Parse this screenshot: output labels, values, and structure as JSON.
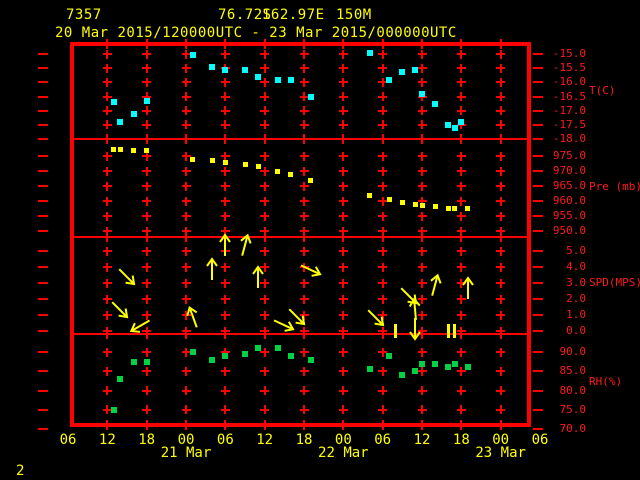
{
  "header": {
    "station_id": "7357",
    "latitude": "76.72S",
    "longitude": "162.97E",
    "elevation": "150M",
    "time_range": "20 Mar 2015/120000UTC - 23 Mar 2015/000000UTC"
  },
  "page_number": "2",
  "colors": {
    "background": "#000000",
    "axis_red": "#ff0000",
    "label_yellow": "#ffff00",
    "temperature_marker": "#00ffff",
    "pressure_marker": "#ffff00",
    "wind_arrow": "#ffff00",
    "humidity_marker": "#00d244"
  },
  "x_axis": {
    "time_base": "hours after 20 Mar 2015 0600UTC",
    "hour_labels": [
      "06",
      "12",
      "18",
      "00",
      "06",
      "12",
      "18",
      "00",
      "06",
      "12",
      "18",
      "00",
      "06"
    ],
    "date_labels": [
      {
        "label": "21 Mar",
        "t": 18
      },
      {
        "label": "22 Mar",
        "t": 42
      },
      {
        "label": "23 Mar",
        "t": 66
      }
    ]
  },
  "chart_data": [
    {
      "type": "scatter",
      "name": "temperature",
      "ylabel": "T(C)",
      "ylim": [
        -18.0,
        -15.0
      ],
      "ytick_labels": [
        "-15.0",
        "-15.5",
        "-16.0",
        "-16.5",
        "-17.0",
        "-17.5",
        "-18.0"
      ],
      "marker_color": "#00ffff",
      "points": [
        [
          7,
          -16.7
        ],
        [
          8,
          -17.4
        ],
        [
          10,
          -17.1
        ],
        [
          12,
          -16.65
        ],
        [
          19,
          -15.05
        ],
        [
          22,
          -15.45
        ],
        [
          24,
          -15.55
        ],
        [
          27,
          -15.55
        ],
        [
          29,
          -15.8
        ],
        [
          32,
          -15.9
        ],
        [
          34,
          -15.9
        ],
        [
          37,
          -16.5
        ],
        [
          46,
          -14.95
        ],
        [
          49,
          -15.9
        ],
        [
          51,
          -15.65
        ],
        [
          53,
          -15.55
        ],
        [
          54,
          -16.4
        ],
        [
          56,
          -16.75
        ],
        [
          58,
          -17.5
        ],
        [
          59,
          -17.6
        ],
        [
          60,
          -17.4
        ]
      ]
    },
    {
      "type": "scatter",
      "name": "pressure",
      "ylabel": "Pre (mb)",
      "ylim": [
        950.0,
        975.0
      ],
      "ytick_labels": [
        "975.0",
        "970.0",
        "965.0",
        "960.0",
        "955.0",
        "950.0"
      ],
      "marker_color": "#ffff00",
      "points": [
        [
          7,
          977.3
        ],
        [
          8,
          977.3
        ],
        [
          10,
          977.0
        ],
        [
          12,
          977.0
        ],
        [
          19,
          974.0
        ],
        [
          22,
          973.4
        ],
        [
          24,
          972.7
        ],
        [
          27,
          972.1
        ],
        [
          29,
          971.4
        ],
        [
          32,
          969.8
        ],
        [
          34,
          968.8
        ],
        [
          37,
          966.9
        ],
        [
          46,
          961.8
        ],
        [
          49,
          960.4
        ],
        [
          51,
          959.5
        ],
        [
          53,
          958.8
        ],
        [
          54,
          958.6
        ],
        [
          56,
          958.1
        ],
        [
          58,
          957.5
        ],
        [
          59,
          957.6
        ],
        [
          61,
          957.5
        ]
      ]
    },
    {
      "type": "wind",
      "name": "wind-speed",
      "ylabel": "SPD(MPS)",
      "ylim": [
        0.0,
        5.0
      ],
      "ytick_labels": [
        "5.0",
        "4.0",
        "3.0",
        "2.0",
        "1.0",
        "0.0"
      ],
      "arrow_color": "#ffff00",
      "points": [
        {
          "t": 8,
          "v": 1.3,
          "dir": 135
        },
        {
          "t": 9,
          "v": 3.4,
          "dir": 135
        },
        {
          "t": 11,
          "v": 0.3,
          "dir": 240
        },
        {
          "t": 19,
          "v": 0.9,
          "dir": 340
        },
        {
          "t": 22,
          "v": 3.9,
          "dir": 0
        },
        {
          "t": 24,
          "v": 5.4,
          "dir": 0
        },
        {
          "t": 27,
          "v": 5.4,
          "dir": 15
        },
        {
          "t": 29,
          "v": 3.4,
          "dir": 0
        },
        {
          "t": 33,
          "v": 0.4,
          "dir": 115
        },
        {
          "t": 35,
          "v": 0.9,
          "dir": 135
        },
        {
          "t": 37,
          "v": 3.8,
          "dir": 115
        },
        {
          "t": 47,
          "v": 0.8,
          "dir": 135
        },
        {
          "t": 50,
          "v": 0,
          "calm": true
        },
        {
          "t": 52,
          "v": 2.2,
          "dir": 135
        },
        {
          "t": 53,
          "v": 1.4,
          "dir": 355
        },
        {
          "t": 53,
          "v": 0.1,
          "dir": 180
        },
        {
          "t": 56,
          "v": 2.9,
          "dir": 15
        },
        {
          "t": 58,
          "v": 0,
          "calm": true
        },
        {
          "t": 59,
          "v": 0,
          "calm": true
        },
        {
          "t": 61,
          "v": 2.7,
          "dir": 0
        }
      ]
    },
    {
      "type": "scatter",
      "name": "relative-humidity",
      "ylabel": "RH(%)",
      "ylim": [
        70.0,
        90.0
      ],
      "ytick_labels": [
        "90.0",
        "85.0",
        "80.0",
        "75.0",
        "70.0"
      ],
      "marker_color": "#00d244",
      "points": [
        [
          7,
          75
        ],
        [
          8,
          83
        ],
        [
          10,
          87.5
        ],
        [
          12,
          87.5
        ],
        [
          19,
          90
        ],
        [
          22,
          88
        ],
        [
          24,
          89
        ],
        [
          27,
          89.5
        ],
        [
          29,
          91
        ],
        [
          32,
          91
        ],
        [
          34,
          89
        ],
        [
          37,
          88
        ],
        [
          46,
          85.5
        ],
        [
          49,
          89
        ],
        [
          51,
          84
        ],
        [
          53,
          85
        ],
        [
          54,
          87
        ],
        [
          56,
          87
        ],
        [
          58,
          86
        ],
        [
          59,
          87
        ],
        [
          61,
          86
        ]
      ]
    }
  ]
}
